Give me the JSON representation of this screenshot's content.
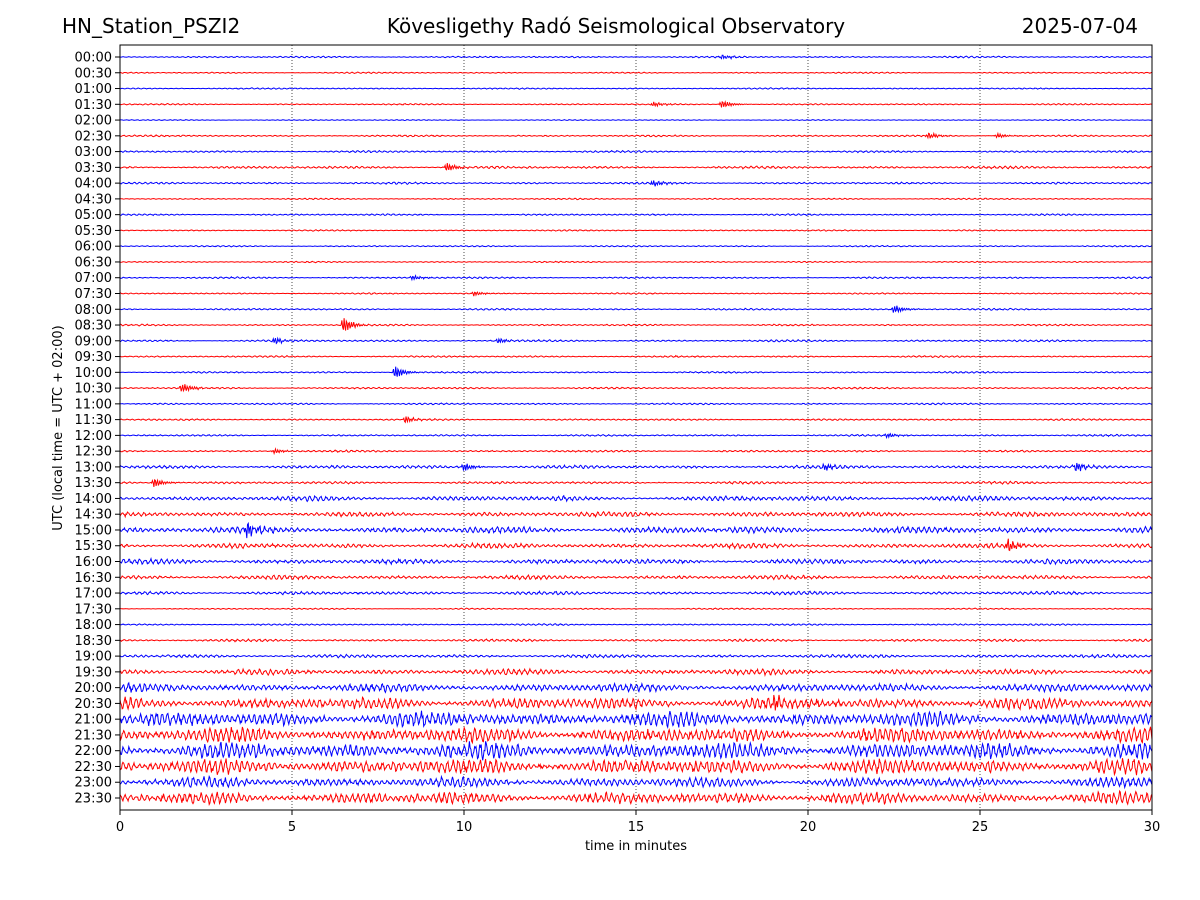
{
  "header": {
    "station": "HN_Station_PSZI2",
    "observatory": "Kövesligethy Radó Seismological Observatory",
    "date": "2025-07-04"
  },
  "chart_data": {
    "type": "line",
    "title": "Kövesligethy Radó Seismological Observatory",
    "xlabel": "time in minutes",
    "ylabel": "UTC (local time = UTC + 02:00)",
    "xlim": [
      0,
      30
    ],
    "xticks": [
      0,
      5,
      10,
      15,
      20,
      25,
      30
    ],
    "grid": "vertical dotted at 5-minute intervals",
    "colors": [
      "#0000ff",
      "#ff0000"
    ],
    "rows": [
      "00:00",
      "00:30",
      "01:00",
      "01:30",
      "02:00",
      "02:30",
      "03:00",
      "03:30",
      "04:00",
      "04:30",
      "05:00",
      "05:30",
      "06:00",
      "06:30",
      "07:00",
      "07:30",
      "08:00",
      "08:30",
      "09:00",
      "09:30",
      "10:00",
      "10:30",
      "11:00",
      "11:30",
      "12:00",
      "12:30",
      "13:00",
      "13:30",
      "14:00",
      "14:30",
      "15:00",
      "15:30",
      "16:00",
      "16:30",
      "17:00",
      "17:30",
      "18:00",
      "18:30",
      "19:00",
      "19:30",
      "20:00",
      "20:30",
      "21:00",
      "21:30",
      "22:00",
      "22:30",
      "23:00",
      "23:30"
    ],
    "noise_level": [
      0.1,
      0.08,
      0.08,
      0.08,
      0.05,
      0.1,
      0.12,
      0.15,
      0.12,
      0.08,
      0.1,
      0.08,
      0.08,
      0.08,
      0.1,
      0.08,
      0.1,
      0.1,
      0.12,
      0.1,
      0.1,
      0.1,
      0.1,
      0.1,
      0.1,
      0.12,
      0.2,
      0.15,
      0.3,
      0.3,
      0.4,
      0.3,
      0.3,
      0.25,
      0.2,
      0.08,
      0.1,
      0.15,
      0.2,
      0.35,
      0.5,
      0.7,
      0.9,
      0.9,
      1.0,
      0.9,
      0.6,
      0.7
    ],
    "events": [
      {
        "row": "00:00",
        "minute": 17.5,
        "amplitude": 0.3
      },
      {
        "row": "01:30",
        "minute": 15.5,
        "amplitude": 0.3
      },
      {
        "row": "01:30",
        "minute": 17.5,
        "amplitude": 0.5
      },
      {
        "row": "02:30",
        "minute": 23.5,
        "amplitude": 0.4
      },
      {
        "row": "02:30",
        "minute": 25.5,
        "amplitude": 0.3
      },
      {
        "row": "03:30",
        "minute": 9.5,
        "amplitude": 0.5
      },
      {
        "row": "04:00",
        "minute": 15.5,
        "amplitude": 0.4
      },
      {
        "row": "07:00",
        "minute": 8.5,
        "amplitude": 0.3
      },
      {
        "row": "07:30",
        "minute": 10.3,
        "amplitude": 0.3
      },
      {
        "row": "08:00",
        "minute": 22.5,
        "amplitude": 0.5
      },
      {
        "row": "08:30",
        "minute": 6.5,
        "amplitude": 1.0
      },
      {
        "row": "09:00",
        "minute": 4.5,
        "amplitude": 0.4
      },
      {
        "row": "09:00",
        "minute": 11.0,
        "amplitude": 0.3
      },
      {
        "row": "10:00",
        "minute": 8.0,
        "amplitude": 0.8
      },
      {
        "row": "10:30",
        "minute": 1.8,
        "amplitude": 0.6
      },
      {
        "row": "11:30",
        "minute": 8.3,
        "amplitude": 0.4
      },
      {
        "row": "12:00",
        "minute": 22.3,
        "amplitude": 0.3
      },
      {
        "row": "12:30",
        "minute": 4.5,
        "amplitude": 0.3
      },
      {
        "row": "13:00",
        "minute": 10.0,
        "amplitude": 0.5
      },
      {
        "row": "13:00",
        "minute": 20.5,
        "amplitude": 0.4
      },
      {
        "row": "13:00",
        "minute": 27.8,
        "amplitude": 0.5
      },
      {
        "row": "13:30",
        "minute": 1.0,
        "amplitude": 0.6
      },
      {
        "row": "15:00",
        "minute": 3.7,
        "amplitude": 0.8
      },
      {
        "row": "15:30",
        "minute": 25.8,
        "amplitude": 0.8
      },
      {
        "row": "20:30",
        "minute": 19.0,
        "amplitude": 0.9
      }
    ]
  }
}
